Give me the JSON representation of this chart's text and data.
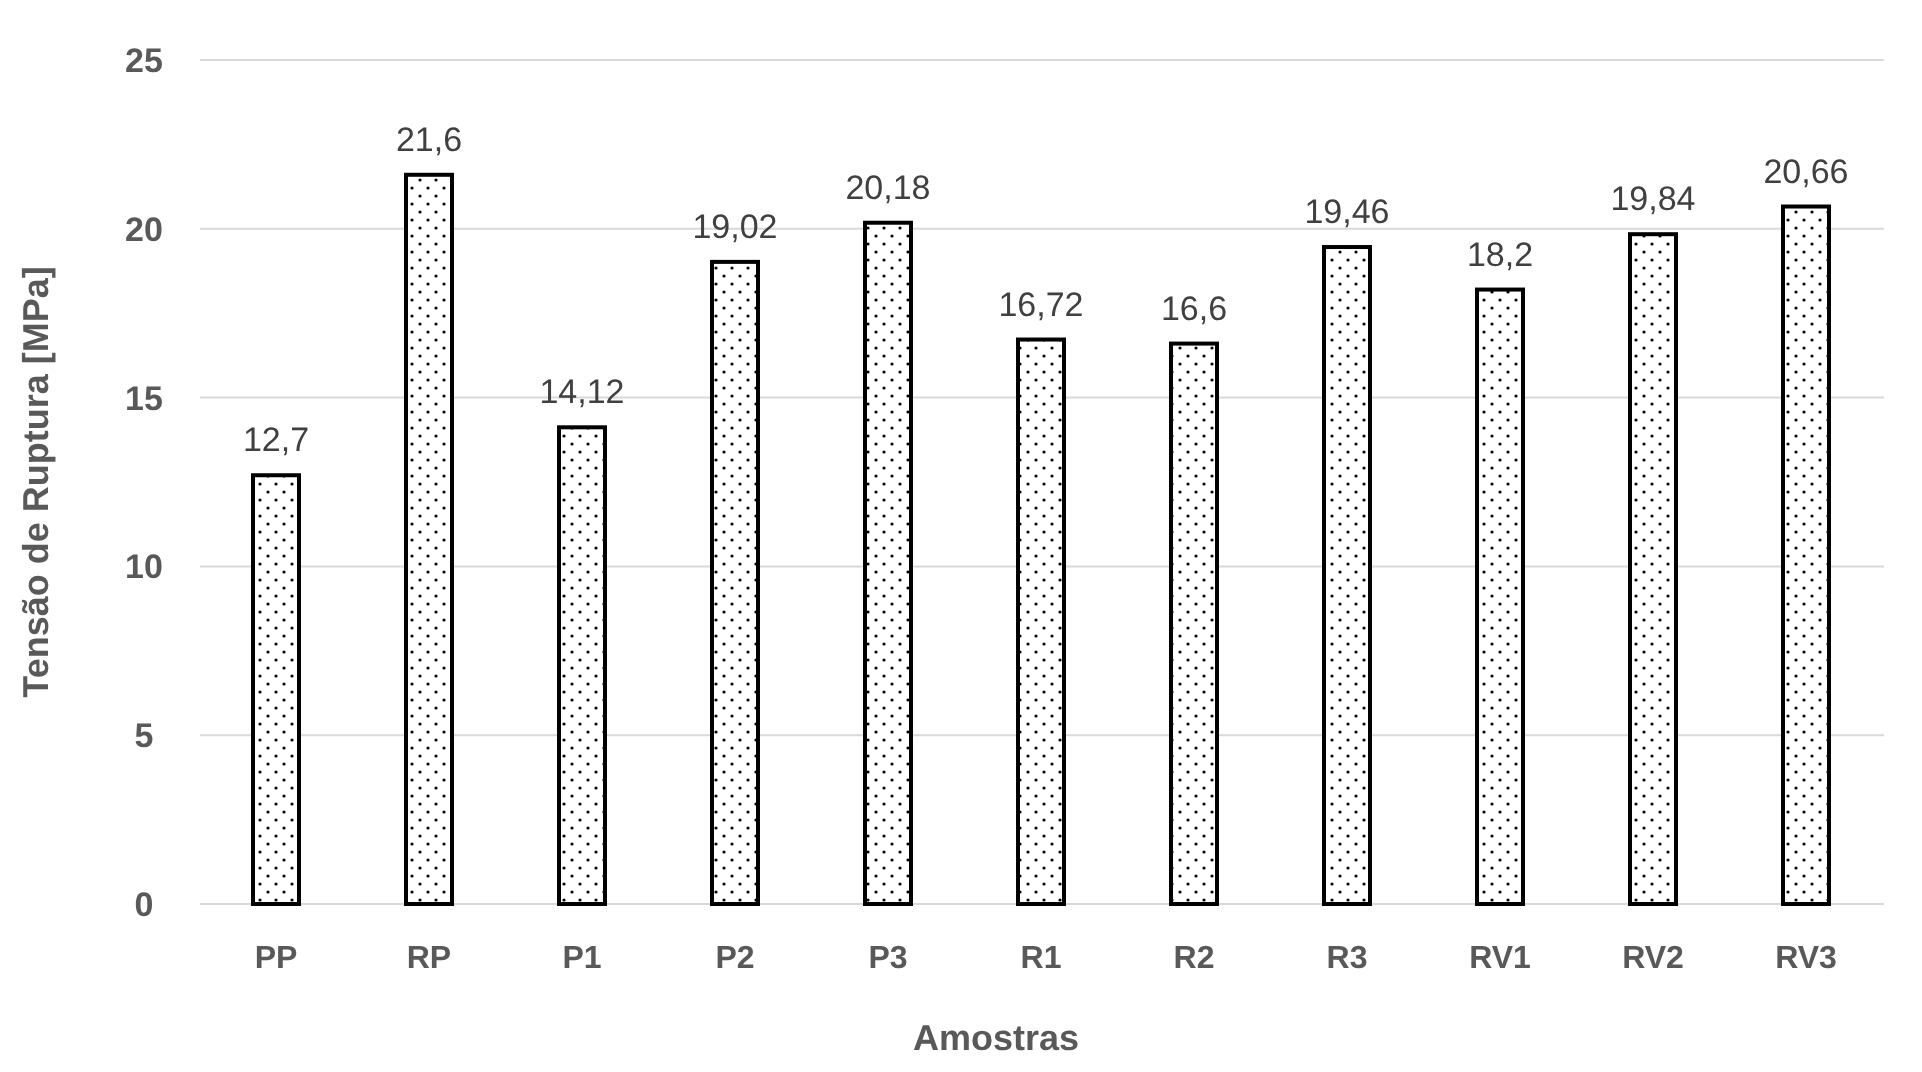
{
  "chart_data": {
    "type": "bar",
    "xlabel": "Amostras",
    "ylabel": "Tensão de Ruptura [MPa]",
    "categories": [
      "PP",
      "RP",
      "P1",
      "P2",
      "P3",
      "R1",
      "R2",
      "R3",
      "RV1",
      "RV2",
      "RV3"
    ],
    "values": [
      12.7,
      21.6,
      14.12,
      19.02,
      20.18,
      16.72,
      16.6,
      19.46,
      18.2,
      19.84,
      20.66
    ],
    "value_labels": [
      "12,7",
      "21,6",
      "14,12",
      "19,02",
      "20,18",
      "16,72",
      "16,6",
      "19,46",
      "18,2",
      "19,84",
      "20,66"
    ],
    "color": "#000000",
    "ylim": [
      0,
      25
    ],
    "yticks": [
      0,
      5,
      10,
      15,
      20,
      25
    ],
    "grid": "y"
  }
}
